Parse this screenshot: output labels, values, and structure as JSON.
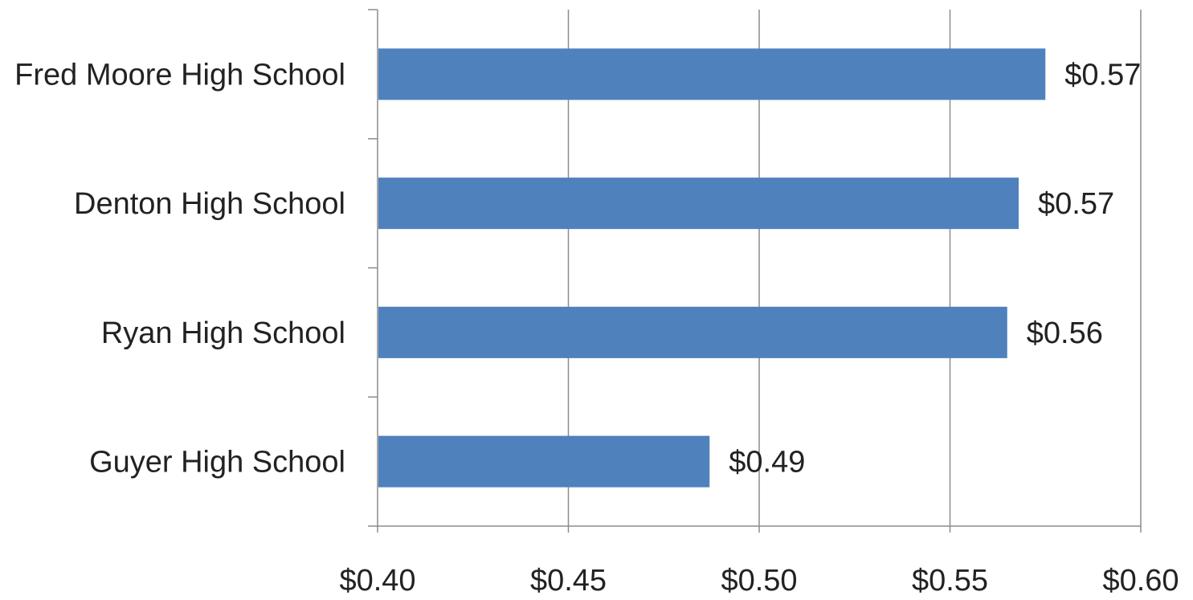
{
  "chart_data": {
    "type": "bar",
    "orientation": "horizontal",
    "categories": [
      "Fred Moore High School",
      "Denton High School",
      "Ryan High School",
      "Guyer High School"
    ],
    "values": [
      0.575,
      0.568,
      0.565,
      0.487
    ],
    "value_labels": [
      "$0.57",
      "$0.57",
      "$0.56",
      "$0.49"
    ],
    "xlim": [
      0.4,
      0.6
    ],
    "x_ticks": [
      0.4,
      0.45,
      0.5,
      0.55,
      0.6
    ],
    "x_tick_labels": [
      "$0.40",
      "$0.45",
      "$0.50",
      "$0.55",
      "$0.60"
    ],
    "title": "",
    "xlabel": "",
    "ylabel": "",
    "grid": "vertical",
    "legend": "none",
    "bar_color": "#4f81bd",
    "grid_color": "#8c8c8c"
  }
}
